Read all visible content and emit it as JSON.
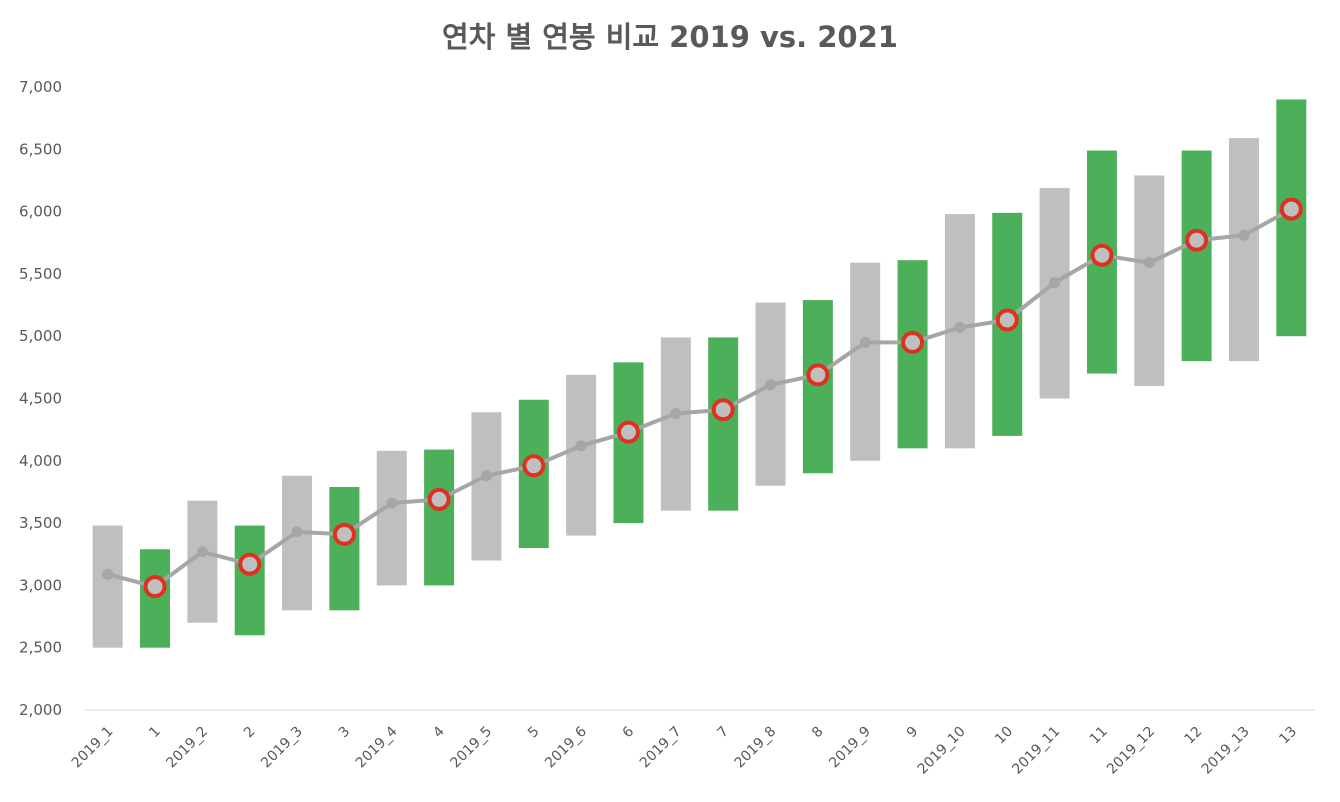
{
  "chart_data": {
    "type": "bar",
    "title": "연차 별 연봉 비교 2019 vs. 2021",
    "xlabel": "",
    "ylabel": "",
    "ylim": [
      2000,
      7000
    ],
    "yticks": [
      2000,
      2500,
      3000,
      3500,
      4000,
      4500,
      5000,
      5500,
      6000,
      6500,
      7000
    ],
    "ytick_labels": [
      "2,000",
      "2,500",
      "3,000",
      "3,500",
      "4,000",
      "4,500",
      "5,000",
      "5,500",
      "6,000",
      "6,500",
      "7,000"
    ],
    "grid": false,
    "legend": "none",
    "categories": [
      "2019_1",
      "1",
      "2019_2",
      "2",
      "2019_3",
      "3",
      "2019_4",
      "4",
      "2019_5",
      "5",
      "2019_6",
      "6",
      "2019_7",
      "7",
      "2019_8",
      "8",
      "2019_9",
      "9",
      "2019_10",
      "10",
      "2019_11",
      "11",
      "2019_12",
      "12",
      "2019_13",
      "13"
    ],
    "series": [
      {
        "type": "range-bar",
        "low": [
          2500,
          2500,
          2700,
          2600,
          2800,
          2800,
          3000,
          3000,
          3200,
          3300,
          3400,
          3500,
          3600,
          3600,
          3800,
          3900,
          4000,
          4100,
          4100,
          4200,
          4500,
          4700,
          4600,
          4800,
          4800,
          5000
        ],
        "high": [
          3480,
          3290,
          3680,
          3480,
          3880,
          3790,
          4080,
          4090,
          4390,
          4490,
          4690,
          4790,
          4990,
          4990,
          5270,
          5290,
          5590,
          5610,
          5980,
          5990,
          6190,
          6490,
          6290,
          6490,
          6590,
          6900
        ],
        "colors": [
          "#bfbfbf",
          "#4caf5a",
          "#bfbfbf",
          "#4caf5a",
          "#bfbfbf",
          "#4caf5a",
          "#bfbfbf",
          "#4caf5a",
          "#bfbfbf",
          "#4caf5a",
          "#bfbfbf",
          "#4caf5a",
          "#bfbfbf",
          "#4caf5a",
          "#bfbfbf",
          "#4caf5a",
          "#bfbfbf",
          "#4caf5a",
          "#bfbfbf",
          "#4caf5a",
          "#bfbfbf",
          "#4caf5a",
          "#bfbfbf",
          "#4caf5a",
          "#bfbfbf",
          "#4caf5a"
        ]
      },
      {
        "type": "line",
        "values": [
          3090,
          2990,
          3270,
          3170,
          3430,
          3410,
          3660,
          3690,
          3880,
          3960,
          4120,
          4230,
          4380,
          4410,
          4610,
          4690,
          4950,
          4950,
          5070,
          5130,
          5430,
          5650,
          5590,
          5770,
          5810,
          6020
        ],
        "highlighted": [
          false,
          true,
          false,
          true,
          false,
          true,
          false,
          true,
          false,
          true,
          false,
          true,
          false,
          true,
          false,
          true,
          false,
          true,
          false,
          true,
          false,
          true,
          false,
          true,
          false,
          true
        ],
        "line_color": "#a6a6a6",
        "highlight_ring_color": "#e03020"
      }
    ]
  }
}
